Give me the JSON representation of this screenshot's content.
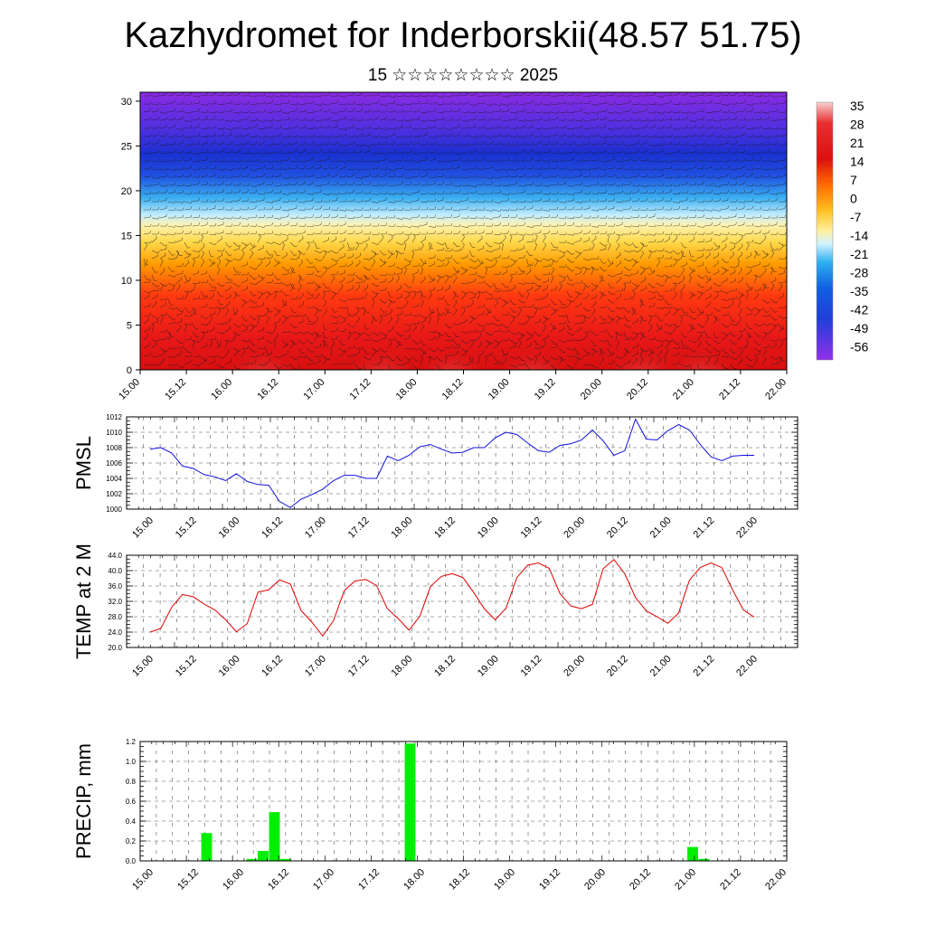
{
  "title": "Kazhydromet for Inderborskii(48.57 51.75)",
  "subtitle": "15 ☆☆☆☆☆☆☆☆ 2025",
  "time_labels": [
    "15.00",
    "15.12",
    "16.00",
    "16.12",
    "17.00",
    "17.12",
    "18.00",
    "18.12",
    "19.00",
    "19.12",
    "20.00",
    "20.12",
    "21.00",
    "21.12",
    "22.00"
  ],
  "chart_data": [
    {
      "type": "heatmap",
      "panel": "cross-section",
      "y_ticks": [
        0,
        5,
        10,
        15,
        20,
        25,
        30
      ],
      "ylim": [
        0,
        31
      ],
      "colorbar_labels": [
        "35",
        "28",
        "21",
        "14",
        "7",
        "0",
        "-7",
        "-14",
        "-21",
        "-28",
        "-35",
        "-42",
        "-49",
        "-56"
      ],
      "colors": [
        "#f5c2c2",
        "#e02020",
        "#ff8a00",
        "#ffd84a",
        "#fff2a0",
        "#c8f0ff",
        "#2aa8e8",
        "#1e3cd0",
        "#8a2be2"
      ]
    },
    {
      "type": "line",
      "name": "PMSL",
      "ylabel": "PMSL",
      "ylim": [
        1000,
        1012
      ],
      "y_ticks": [
        "1000",
        "1002",
        "1004",
        "1006",
        "1008",
        "1010",
        "1012"
      ],
      "color": "#1010dd",
      "values": [
        1007.8,
        1008.0,
        1007.3,
        1005.6,
        1005.3,
        1004.5,
        1004.2,
        1003.7,
        1004.6,
        1003.6,
        1003.2,
        1003.1,
        1001.0,
        1000.2,
        1001.3,
        1001.9,
        1002.6,
        1003.7,
        1004.4,
        1004.4,
        1004.0,
        1004.0,
        1006.9,
        1006.3,
        1007.0,
        1008.1,
        1008.4,
        1007.8,
        1007.3,
        1007.4,
        1008.0,
        1008.0,
        1009.3,
        1010.0,
        1009.7,
        1008.6,
        1007.6,
        1007.4,
        1008.3,
        1008.5,
        1009.0,
        1010.3,
        1008.9,
        1007.0,
        1007.6,
        1011.7,
        1009.1,
        1009.0,
        1010.2,
        1011.0,
        1010.3,
        1008.4,
        1006.8,
        1006.3,
        1006.9,
        1007.0,
        1007.0
      ]
    },
    {
      "type": "line",
      "name": "TEMP at 2 M",
      "ylabel": "TEMP at 2 M",
      "ylim": [
        20,
        44
      ],
      "y_ticks": [
        "20.0",
        "24.0",
        "28.0",
        "32.0",
        "36.0",
        "40.0",
        "44.0"
      ],
      "color": "#dd0000",
      "values": [
        24.0,
        25.0,
        30.5,
        33.8,
        33.2,
        31.3,
        29.8,
        27.2,
        24.1,
        26.2,
        34.4,
        35.0,
        37.6,
        36.5,
        29.6,
        26.6,
        23.0,
        27.0,
        34.8,
        37.3,
        37.7,
        36.1,
        30.1,
        27.5,
        24.5,
        28.1,
        35.9,
        38.5,
        39.2,
        38.2,
        34.3,
        30.0,
        27.2,
        30.2,
        38.2,
        41.4,
        42.0,
        40.6,
        34.0,
        30.8,
        30.1,
        31.2,
        40.5,
        42.9,
        39.2,
        33.0,
        29.5,
        28.0,
        26.3,
        29.0,
        37.5,
        40.8,
        42.0,
        40.8,
        35.0,
        29.8,
        27.9
      ]
    },
    {
      "type": "bar",
      "name": "PRECIP, mm",
      "ylabel": "PRECIP, mm",
      "ylim": [
        0,
        1.2
      ],
      "y_ticks": [
        "0.0",
        "0.2",
        "0.4",
        "0.6",
        "0.8",
        "1.0",
        "1.2"
      ],
      "color": "#00ee00",
      "values": [
        0,
        0,
        0,
        0,
        0,
        0.28,
        0,
        0,
        0,
        0.02,
        0.1,
        0.49,
        0.02,
        0,
        0,
        0,
        0,
        0,
        0,
        0,
        0,
        0,
        0,
        1.18,
        0,
        0,
        0,
        0,
        0,
        0,
        0,
        0,
        0,
        0,
        0,
        0,
        0,
        0,
        0,
        0,
        0,
        0,
        0,
        0,
        0,
        0,
        0,
        0,
        0.14,
        0.02,
        0,
        0,
        0,
        0,
        0,
        0,
        0
      ]
    }
  ]
}
